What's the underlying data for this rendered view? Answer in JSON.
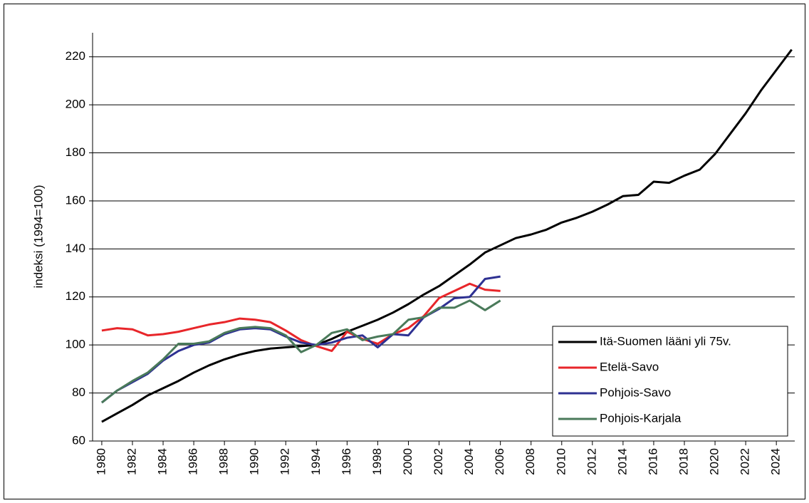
{
  "chart_data": {
    "type": "line",
    "ylabel": "indeksi (1994=100)",
    "x": [
      1980,
      1981,
      1982,
      1983,
      1984,
      1985,
      1986,
      1987,
      1988,
      1989,
      1990,
      1991,
      1992,
      1993,
      1994,
      1995,
      1996,
      1997,
      1998,
      1999,
      2000,
      2001,
      2002,
      2003,
      2004,
      2005,
      2006,
      2007,
      2008,
      2009,
      2010,
      2011,
      2012,
      2013,
      2014,
      2015,
      2016,
      2017,
      2018,
      2019,
      2020,
      2021,
      2022,
      2023,
      2024,
      2025
    ],
    "series": [
      {
        "name": "Itä-Suomen lääni yli 75v.",
        "color": "#000000",
        "values": [
          68,
          71.5,
          75,
          79,
          82,
          85,
          88.5,
          91.5,
          94,
          96,
          97.5,
          98.5,
          99,
          99.5,
          100,
          102.5,
          105.5,
          108,
          110.5,
          113.5,
          117,
          121,
          124.5,
          129,
          133.5,
          138.5,
          141.5,
          144.5,
          146,
          148,
          151,
          153,
          155.5,
          158.5,
          162,
          162.5,
          168,
          167.5,
          170.5,
          173,
          179.5,
          188,
          196.5,
          206,
          214.5,
          223
        ]
      },
      {
        "name": "Etelä-Savo",
        "color": "#e8262a",
        "values": [
          106,
          107,
          106.5,
          104,
          104.5,
          105.5,
          107,
          108.5,
          109.5,
          111,
          110.5,
          109.5,
          106,
          102,
          99.5,
          97.5,
          105.5,
          102.5,
          100.5,
          104.5,
          107,
          112,
          119.5,
          122.5,
          125.5,
          123,
          122.5,
          null,
          null,
          null,
          null,
          null,
          null,
          null,
          null,
          null,
          null,
          null,
          null,
          null,
          null,
          null,
          null,
          null,
          null,
          null
        ]
      },
      {
        "name": "Pohjois-Savo",
        "color": "#2e3192",
        "values": [
          76,
          81,
          84.5,
          88,
          93.5,
          97.5,
          100,
          101,
          104.5,
          106.5,
          107,
          106.5,
          103.5,
          101,
          100,
          101,
          103,
          104,
          99,
          104.5,
          104,
          111.5,
          115,
          119.5,
          120,
          127.5,
          128.5,
          null,
          null,
          null,
          null,
          null,
          null,
          null,
          null,
          null,
          null,
          null,
          null,
          null,
          null,
          null,
          null,
          null,
          null,
          null
        ]
      },
      {
        "name": "Pohjois-Karjala",
        "color": "#4a7a5a",
        "values": [
          76,
          81,
          85,
          88.5,
          94,
          100.5,
          100.5,
          101.5,
          105,
          107,
          107.5,
          107,
          104,
          97,
          100,
          105,
          106.5,
          102,
          103.5,
          104.5,
          110.5,
          111.5,
          115.5,
          115.5,
          118.5,
          114.5,
          118.5,
          null,
          null,
          null,
          null,
          null,
          null,
          null,
          null,
          null,
          null,
          null,
          null,
          null,
          null,
          null,
          null,
          null,
          null,
          null
        ]
      }
    ],
    "xlim": [
      1979.4,
      2025.2
    ],
    "xticks": [
      1980,
      1982,
      1984,
      1986,
      1988,
      1990,
      1992,
      1994,
      1996,
      1998,
      2000,
      2002,
      2004,
      2006,
      2008,
      2010,
      2012,
      2014,
      2016,
      2018,
      2020,
      2022,
      2024
    ],
    "ylim": [
      60,
      230
    ],
    "yticks": [
      60,
      80,
      100,
      120,
      140,
      160,
      180,
      200,
      220
    ],
    "grid": true,
    "legend": "lower-right"
  }
}
